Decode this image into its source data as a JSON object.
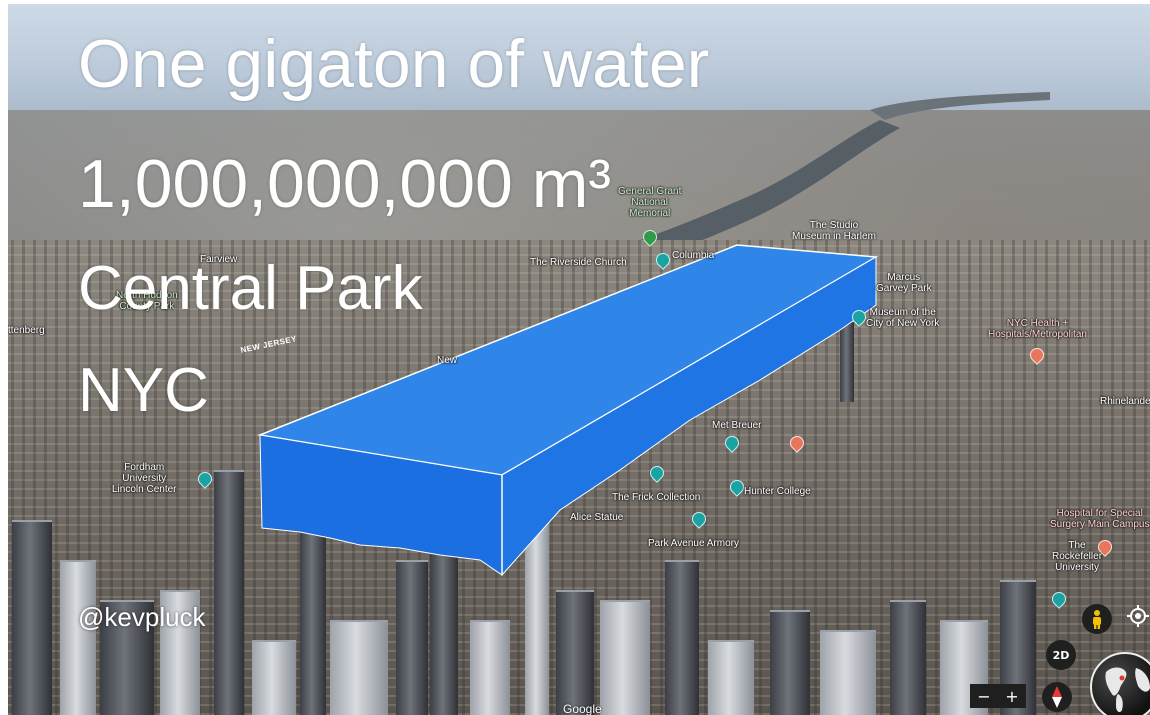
{
  "overlay": {
    "line1": "One gigaton of water",
    "line2": "1,000,000,000 m³",
    "line3": "Central Park",
    "line4": "NYC",
    "handle": "@kevpluck"
  },
  "map_labels": {
    "general_grant": "General Grant\nNational\nMemorial",
    "studio_museum": "The Studio\nMuseum in Harlem",
    "riverside_church": "The Riverside Church",
    "columbia": "Columbia",
    "fairview": "Fairview",
    "north_hudson": "North Hudson\nCounty Park",
    "guttenberg": "ttenberg",
    "new_jersey": "NEW JERSEY",
    "marcus_garvey": "Marcus\nGarvey Park",
    "museum_city": "Museum of the\nCity of New York",
    "nyc_health": "NYC Health +\nHospitals/Metropolitan",
    "met_breuer": "Met Breuer",
    "frick": "The Frick Collection",
    "hunter": "Hunter College",
    "statue": "Alice Statue",
    "armory": "Park Avenue Armory",
    "fordham": "Fordham\nUniversity\nLincoln Center",
    "special_surgery": "Hospital for Special\nSurgery Main Campus",
    "rockefeller": "The\nRockefeller\nUniversity",
    "rhinelander": "Rhinelande",
    "new_label": "New"
  },
  "controls": {
    "two_d": "2D",
    "zoom_minus": "−",
    "zoom_plus": "+",
    "attribution": "Google"
  },
  "colors": {
    "water_block_top": "#2f86e8",
    "water_block_side": "#1b6fe0",
    "overlay_text": "#ffffff"
  },
  "icons": [
    "pegman-icon",
    "locate-icon",
    "compass-icon",
    "globe-icon"
  ]
}
